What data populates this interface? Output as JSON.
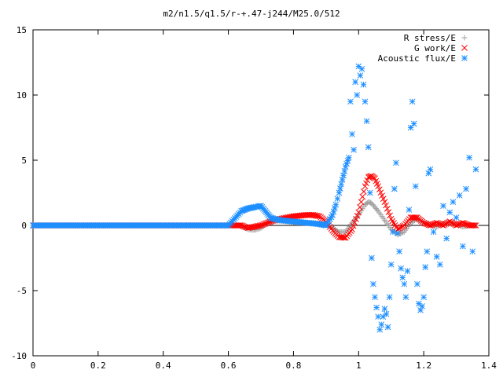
{
  "chart_data": {
    "type": "scatter",
    "title": "m2/n1.5/q1.5/r-+.47-j244/M25.0/512",
    "xlabel": "",
    "ylabel": "",
    "xlim": [
      0,
      1.4
    ],
    "ylim": [
      -10,
      15
    ],
    "x_ticks": [
      "0",
      "0.2",
      "0.4",
      "0.6",
      "0.8",
      "1",
      "1.2",
      "1.4"
    ],
    "y_ticks": [
      "-10",
      "-5",
      "0",
      "5",
      "10",
      "15"
    ],
    "x_tick_values": [
      0,
      0.2,
      0.4,
      0.6,
      0.8,
      1.0,
      1.2,
      1.4
    ],
    "y_tick_values": [
      -10,
      -5,
      0,
      5,
      10,
      15
    ],
    "legend_position": "top-right",
    "grid": false,
    "series": [
      {
        "name": "R stress/E",
        "marker": "plus",
        "color": "#a0a0a0",
        "x": [
          0.0,
          0.6,
          0.64,
          0.66,
          0.68,
          0.7,
          0.72,
          0.74,
          0.76,
          0.78,
          0.8,
          0.82,
          0.84,
          0.86,
          0.88,
          0.9,
          0.92,
          0.94,
          0.96,
          0.98,
          1.0,
          1.02,
          1.03,
          1.04,
          1.05,
          1.06,
          1.08,
          1.1,
          1.12,
          1.14,
          1.16,
          1.18,
          1.2,
          1.22,
          1.24,
          1.26,
          1.28,
          1.3,
          1.32,
          1.34,
          1.36
        ],
        "y": [
          0,
          0,
          0,
          -0.3,
          -0.35,
          -0.2,
          0.2,
          0.35,
          0.35,
          0.3,
          0.25,
          0.2,
          0.2,
          0.2,
          0.15,
          0.1,
          -0.2,
          -0.5,
          -0.5,
          0.2,
          0.8,
          1.6,
          1.8,
          1.7,
          1.4,
          1.1,
          0.4,
          -0.3,
          -0.7,
          -0.5,
          0.2,
          0.5,
          0.2,
          0.0,
          -0.1,
          0.15,
          0.2,
          0.1,
          -0.1,
          0.0,
          0.0
        ]
      },
      {
        "name": "G work/E",
        "marker": "cross",
        "color": "#ff0000",
        "x": [
          0.0,
          0.6,
          0.64,
          0.66,
          0.68,
          0.7,
          0.72,
          0.74,
          0.76,
          0.78,
          0.8,
          0.82,
          0.84,
          0.86,
          0.88,
          0.9,
          0.92,
          0.94,
          0.96,
          0.98,
          1.0,
          1.02,
          1.03,
          1.04,
          1.05,
          1.06,
          1.08,
          1.1,
          1.12,
          1.14,
          1.16,
          1.18,
          1.2,
          1.22,
          1.24,
          1.26,
          1.28,
          1.3,
          1.32,
          1.34,
          1.36
        ],
        "y": [
          0,
          0,
          0,
          -0.2,
          -0.1,
          0.0,
          0.2,
          0.4,
          0.5,
          0.6,
          0.7,
          0.75,
          0.8,
          0.8,
          0.7,
          0.3,
          -0.4,
          -0.9,
          -0.95,
          -0.3,
          1.0,
          3.0,
          3.7,
          3.8,
          3.6,
          3.0,
          1.8,
          0.5,
          -0.3,
          0.0,
          0.6,
          0.6,
          0.2,
          0.0,
          0.2,
          0.0,
          0.3,
          0.0,
          0.2,
          0.0,
          0.0
        ]
      },
      {
        "name": "Acoustic flux/E",
        "marker": "star",
        "color": "#1e8fff",
        "x": [
          0.0,
          0.1,
          0.2,
          0.3,
          0.4,
          0.5,
          0.6,
          0.64,
          0.65,
          0.66,
          0.67,
          0.68,
          0.69,
          0.7,
          0.71,
          0.72,
          0.73,
          0.74,
          0.76,
          0.78,
          0.8,
          0.82,
          0.84,
          0.86,
          0.88,
          0.9,
          0.92,
          0.93,
          0.94,
          0.95,
          0.96,
          0.97,
          0.975,
          0.98,
          0.985,
          0.99,
          0.995,
          1.0,
          1.005,
          1.01,
          1.015,
          1.02,
          1.025,
          1.03,
          1.035,
          1.04,
          1.045,
          1.05,
          1.055,
          1.06,
          1.065,
          1.07,
          1.075,
          1.08,
          1.085,
          1.09,
          1.095,
          1.1,
          1.105,
          1.11,
          1.115,
          1.12,
          1.125,
          1.13,
          1.135,
          1.14,
          1.145,
          1.15,
          1.155,
          1.16,
          1.165,
          1.17,
          1.175,
          1.18,
          1.185,
          1.19,
          1.195,
          1.2,
          1.205,
          1.21,
          1.215,
          1.22,
          1.23,
          1.24,
          1.25,
          1.26,
          1.27,
          1.28,
          1.29,
          1.3,
          1.31,
          1.32,
          1.33,
          1.34,
          1.35,
          1.36
        ],
        "y": [
          0,
          0,
          0,
          0,
          0,
          0,
          0,
          1.1,
          1.2,
          1.3,
          1.35,
          1.4,
          1.45,
          1.5,
          1.2,
          0.9,
          0.6,
          0.5,
          0.4,
          0.35,
          0.3,
          0.25,
          0.2,
          0.15,
          0.1,
          0.0,
          0.8,
          1.6,
          2.5,
          3.5,
          4.5,
          5.2,
          9.5,
          7.0,
          5.8,
          11.0,
          10.0,
          12.2,
          11.5,
          12.0,
          10.8,
          9.5,
          8.0,
          6.0,
          2.5,
          -2.5,
          -4.5,
          -5.5,
          -6.3,
          -7.0,
          -8.0,
          -7.6,
          -7.0,
          -6.4,
          -6.8,
          -7.8,
          -5.5,
          -3.0,
          -0.5,
          2.8,
          4.8,
          -0.6,
          -2.0,
          -3.3,
          -4.0,
          -4.5,
          -5.5,
          -3.5,
          1.2,
          7.5,
          9.5,
          7.8,
          3.0,
          -4.5,
          -6.0,
          -6.5,
          -6.2,
          -5.5,
          -3.2,
          -2.0,
          4.0,
          4.3,
          -0.5,
          -2.4,
          -3.0,
          1.5,
          -1.0,
          1.0,
          1.8,
          0.6,
          2.3,
          -1.6,
          2.8,
          5.2,
          -2.0,
          4.3
        ]
      }
    ]
  }
}
